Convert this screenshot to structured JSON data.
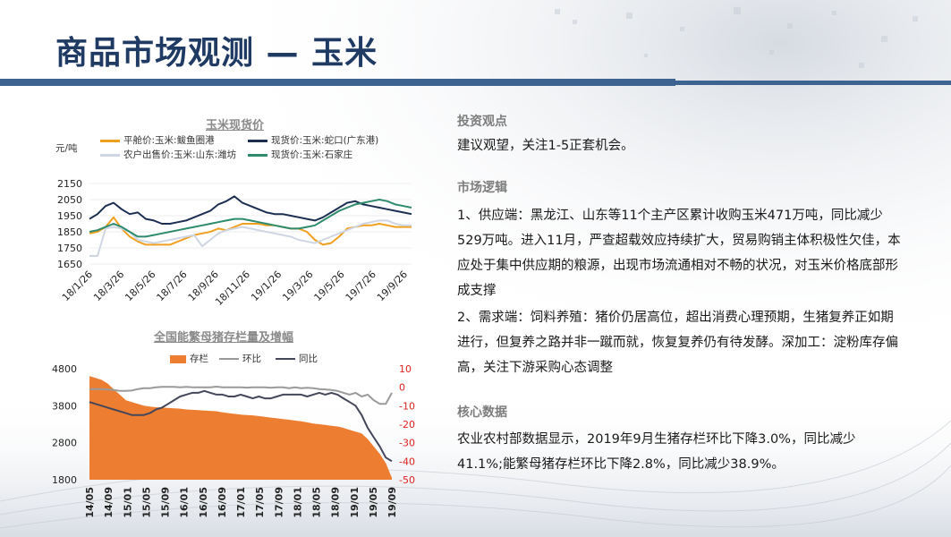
{
  "page": {
    "title": "商品市场观测 — 玉米"
  },
  "right_panel": {
    "sections": [
      {
        "heading": "投资观点",
        "paragraphs": [
          "建议观望，关注1-5正套机会。"
        ]
      },
      {
        "heading": "市场逻辑",
        "paragraphs": [
          "1、供应端：黑龙江、山东等11个主产区累计收购玉米471万吨，同比减少529万吨。进入11月，严查超载效应持续扩大，贸易购销主体积极性欠佳，本应处于集中供应期的粮源，出现市场流通相对不畅的状况，对玉米价格底部形成支撑",
          "2、需求端：饲料养殖：猪价仍居高位，超出消费心理预期，生猪复养正如期进行，但复养之路并非一蹴而就，恢复复养仍有待发酵。深加工：淀粉库存偏高，关注下游采购心态调整"
        ]
      },
      {
        "heading": "核心数据",
        "paragraphs": [
          "农业农村部数据显示，2019年9月生猪存栏环比下降3.0%，同比减少41.1%;能繁母猪存栏环比下降2.8%，同比减少38.9%。"
        ]
      }
    ]
  },
  "chart_data": [
    {
      "type": "line",
      "title": "玉米现货价",
      "unit_label": "元/吨",
      "x_ticks": [
        "18/1/26",
        "18/3/26",
        "18/5/26",
        "18/7/26",
        "18/9/26",
        "18/11/26",
        "19/1/26",
        "19/3/26",
        "19/5/26",
        "19/7/26",
        "19/9/26"
      ],
      "y_ticks": [
        1650,
        1750,
        1850,
        1950,
        2050,
        2150
      ],
      "ylim": [
        1650,
        2150
      ],
      "series": [
        {
          "name": "平舱价:玉米:鲅鱼圈港",
          "color": "#f0a020",
          "values": [
            1840,
            1850,
            1880,
            1940,
            1870,
            1820,
            1790,
            1770,
            1770,
            1770,
            1770,
            1790,
            1810,
            1830,
            1840,
            1850,
            1870,
            1860,
            1880,
            1900,
            1900,
            1900,
            1890,
            1890,
            1880,
            1870,
            1870,
            1850,
            1800,
            1770,
            1780,
            1820,
            1870,
            1880,
            1890,
            1890,
            1900,
            1890,
            1880,
            1880,
            1880
          ]
        },
        {
          "name": "现货价:玉米:蛇口(广东港)",
          "color": "#1c2f52",
          "values": [
            1930,
            1960,
            2010,
            2030,
            1990,
            1960,
            1970,
            1930,
            1920,
            1900,
            1900,
            1910,
            1920,
            1940,
            1960,
            1980,
            2020,
            2040,
            2070,
            2030,
            2010,
            1990,
            1970,
            1960,
            1960,
            1950,
            1940,
            1930,
            1920,
            1940,
            1970,
            2000,
            2030,
            2040,
            2020,
            2010,
            2000,
            1990,
            1980,
            1970,
            1960
          ]
        },
        {
          "name": "农户出售价:玉米:山东:潍坊",
          "color": "#cfd6e3",
          "values": [
            1700,
            1700,
            1870,
            1880,
            1870,
            1850,
            1800,
            1790,
            1780,
            1790,
            1800,
            1810,
            1820,
            1830,
            1760,
            1800,
            1840,
            1860,
            1870,
            1880,
            1870,
            1860,
            1850,
            1840,
            1830,
            1820,
            1800,
            1790,
            1780,
            1800,
            1820,
            1840,
            1860,
            1880,
            1900,
            1910,
            1920,
            1920,
            1900,
            1890,
            1890
          ]
        },
        {
          "name": "现货价:玉米:石家庄",
          "color": "#2e8b6e",
          "values": [
            1850,
            1860,
            1880,
            1900,
            1880,
            1850,
            1820,
            1820,
            1830,
            1840,
            1850,
            1860,
            1870,
            1880,
            1890,
            1900,
            1910,
            1920,
            1930,
            1930,
            1920,
            1910,
            1900,
            1890,
            1880,
            1870,
            1870,
            1880,
            1890,
            1920,
            1950,
            1980,
            2000,
            2020,
            2030,
            2040,
            2050,
            2040,
            2020,
            2010,
            2000
          ]
        }
      ]
    },
    {
      "type": "area",
      "title": "全国能繁母猪存栏量及增幅",
      "x_ticks": [
        "14/05",
        "14/09",
        "15/01",
        "15/05",
        "15/09",
        "16/01",
        "16/05",
        "16/09",
        "17/01",
        "17/05",
        "17/09",
        "18/01",
        "18/05",
        "18/09",
        "19/01",
        "19/05",
        "19/09"
      ],
      "y_left_ticks": [
        1800,
        2800,
        3800,
        4800
      ],
      "ylim_left": [
        1800,
        4800
      ],
      "y_right_ticks": [
        10,
        0,
        -10,
        -20,
        -30,
        -40,
        -50
      ],
      "ylim_right": [
        -50,
        10
      ],
      "series": [
        {
          "name": "存栏",
          "axis": "left",
          "color": "#ed7d31",
          "kind": "area",
          "values": [
            4600,
            4550,
            4500,
            4400,
            4250,
            4100,
            3950,
            3900,
            3850,
            3800,
            3780,
            3760,
            3750,
            3740,
            3730,
            3720,
            3700,
            3690,
            3680,
            3670,
            3660,
            3650,
            3620,
            3600,
            3580,
            3560,
            3550,
            3540,
            3520,
            3500,
            3480,
            3460,
            3440,
            3420,
            3400,
            3380,
            3350,
            3320,
            3300,
            3280,
            3260,
            3240,
            3200,
            3150,
            3100,
            3050,
            2900,
            2700,
            2500,
            2250,
            1850
          ]
        },
        {
          "name": "环比",
          "axis": "right",
          "color": "#9a9a9a",
          "kind": "line",
          "values": [
            -1,
            -1,
            -1,
            -1.2,
            -1.5,
            -2,
            -2,
            -1.8,
            -1,
            -0.5,
            -0.5,
            0,
            0.2,
            0.2,
            0.2,
            0,
            0.2,
            0,
            0,
            0,
            0,
            0.3,
            0,
            0,
            0,
            0,
            -0.2,
            0,
            0,
            0,
            -0.3,
            0,
            0,
            -0.5,
            0,
            -0.5,
            -0.3,
            -0.5,
            -1,
            -1.2,
            -1.5,
            -2,
            -3,
            -4,
            -3,
            -5,
            -4,
            -7,
            -9,
            -9,
            -3
          ]
        },
        {
          "name": "同比",
          "axis": "right",
          "color": "#44475a",
          "kind": "line",
          "values": [
            -8,
            -9,
            -10,
            -11,
            -12,
            -13,
            -14,
            -15,
            -15,
            -15,
            -14,
            -12,
            -11,
            -9,
            -7,
            -5,
            -4,
            -3,
            -3,
            -2,
            -3,
            -4,
            -4,
            -5,
            -5,
            -4,
            -5,
            -6,
            -5,
            -6,
            -6,
            -5,
            -4,
            -4,
            -4,
            -4,
            -5,
            -4,
            -3,
            -4,
            -3,
            -4,
            -6,
            -8,
            -10,
            -15,
            -22,
            -27,
            -32,
            -38,
            -40
          ]
        }
      ]
    }
  ]
}
